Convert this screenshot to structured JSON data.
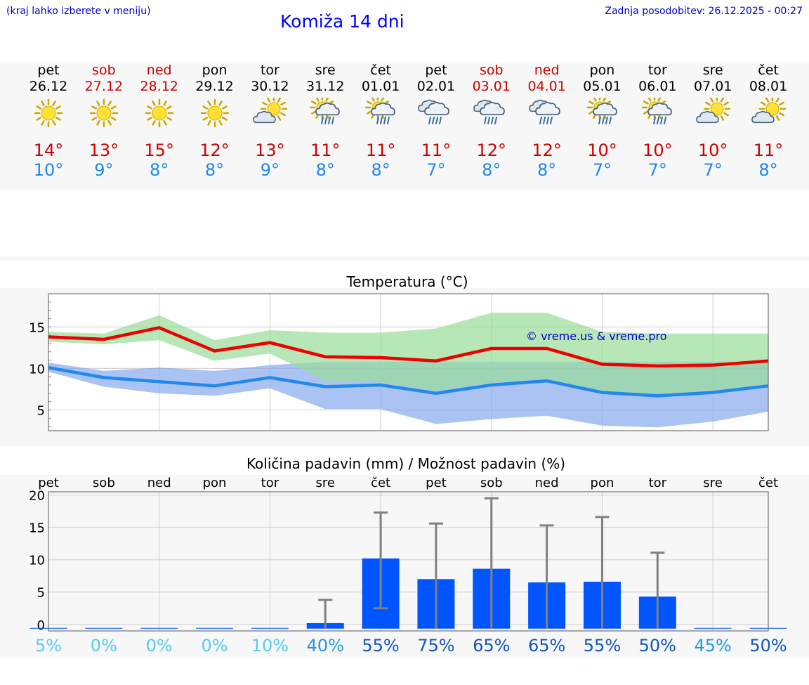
{
  "header": {
    "menu_hint": "(kraj lahko izberete v meniju)",
    "title": "Komiža 14 dni",
    "updated": "Zadnja posodobitev: 26.12.2025 - 00:27"
  },
  "colors": {
    "weekend": "#cc0000",
    "max_line": "#ee0000",
    "min_line": "#2288ee",
    "max_band": "#99dd99",
    "min_band": "#88aaee",
    "bar": "#0055ff",
    "error_bar": "#808080",
    "watermark": "#0000cc"
  },
  "days": [
    {
      "name": "pet",
      "date": "26.12",
      "weekend": false,
      "icon": "sunny-icon",
      "max": "14°",
      "min": "10°"
    },
    {
      "name": "sob",
      "date": "27.12",
      "weekend": true,
      "icon": "sunny-icon",
      "max": "13°",
      "min": "9°"
    },
    {
      "name": "ned",
      "date": "28.12",
      "weekend": true,
      "icon": "sunny-icon",
      "max": "15°",
      "min": "8°"
    },
    {
      "name": "pon",
      "date": "29.12",
      "weekend": false,
      "icon": "sunny-icon",
      "max": "12°",
      "min": "8°"
    },
    {
      "name": "tor",
      "date": "30.12",
      "weekend": false,
      "icon": "partly-cloudy-icon",
      "max": "13°",
      "min": "9°"
    },
    {
      "name": "sre",
      "date": "31.12",
      "weekend": false,
      "icon": "sun-cloud-rain-icon",
      "max": "11°",
      "min": "8°"
    },
    {
      "name": "čet",
      "date": "01.01",
      "weekend": false,
      "icon": "sun-cloud-rain-icon",
      "max": "11°",
      "min": "8°"
    },
    {
      "name": "pet",
      "date": "02.01",
      "weekend": false,
      "icon": "cloud-rain-icon",
      "max": "11°",
      "min": "7°"
    },
    {
      "name": "sob",
      "date": "03.01",
      "weekend": true,
      "icon": "cloud-rain-icon",
      "max": "12°",
      "min": "8°"
    },
    {
      "name": "ned",
      "date": "04.01",
      "weekend": true,
      "icon": "cloud-rain-icon",
      "max": "12°",
      "min": "8°"
    },
    {
      "name": "pon",
      "date": "05.01",
      "weekend": false,
      "icon": "sun-cloud-rain-icon",
      "max": "10°",
      "min": "7°"
    },
    {
      "name": "tor",
      "date": "06.01",
      "weekend": false,
      "icon": "sun-cloud-rain-icon",
      "max": "10°",
      "min": "7°"
    },
    {
      "name": "sre",
      "date": "07.01",
      "weekend": false,
      "icon": "partly-cloudy-icon",
      "max": "10°",
      "min": "7°"
    },
    {
      "name": "čet",
      "date": "08.01",
      "weekend": false,
      "icon": "partly-cloudy-icon",
      "max": "11°",
      "min": "8°"
    }
  ],
  "chart_data": [
    {
      "type": "line",
      "title": "Temperatura (°C)",
      "watermark": "© vreme.us & vreme.pro",
      "ylim": [
        2.5,
        19
      ],
      "yticks": [
        5,
        10,
        15
      ],
      "grid": true,
      "x": [
        0,
        1,
        2,
        3,
        4,
        5,
        6,
        7,
        8,
        9,
        10,
        11,
        12,
        13
      ],
      "series": [
        {
          "name": "max",
          "values": [
            13.8,
            13.5,
            14.9,
            12.1,
            13.1,
            11.4,
            11.3,
            10.9,
            12.4,
            12.4,
            10.5,
            10.3,
            10.4,
            10.9
          ]
        },
        {
          "name": "min",
          "values": [
            10.1,
            8.9,
            8.4,
            7.9,
            8.9,
            7.8,
            8.0,
            7.0,
            8.0,
            8.5,
            7.1,
            6.7,
            7.1,
            7.9
          ]
        }
      ],
      "bands": [
        {
          "name": "max_range",
          "upper": [
            14.4,
            14.2,
            16.4,
            13.4,
            14.6,
            14.3,
            14.3,
            14.8,
            16.7,
            16.7,
            14.4,
            14.2,
            14.2,
            14.2
          ],
          "lower": [
            13.2,
            12.9,
            13.4,
            10.9,
            11.8,
            8.5,
            8.3,
            7.3,
            8.3,
            8.7,
            6.9,
            6.6,
            7.0,
            7.8
          ]
        },
        {
          "name": "min_range",
          "upper": [
            10.7,
            9.7,
            10.1,
            9.7,
            10.4,
            10.8,
            10.8,
            10.8,
            10.8,
            10.8,
            10.8,
            10.8,
            10.8,
            10.8
          ],
          "lower": [
            9.6,
            7.8,
            7.0,
            6.7,
            7.6,
            5.1,
            5.1,
            3.3,
            3.9,
            4.3,
            3.1,
            2.9,
            3.6,
            4.8
          ]
        }
      ]
    },
    {
      "type": "bar",
      "title": "Količina padavin (mm) / Možnost padavin (%)",
      "categories": [
        "pet",
        "sob",
        "ned",
        "pon",
        "tor",
        "sre",
        "čet",
        "pet",
        "sob",
        "ned",
        "pon",
        "tor",
        "sre",
        "čet"
      ],
      "values": [
        0,
        0,
        0,
        0,
        0,
        0.2,
        10.2,
        7.0,
        8.6,
        6.5,
        6.6,
        4.3,
        0,
        0
      ],
      "error_low": [
        0,
        0,
        0,
        0,
        0,
        0,
        2.5,
        0,
        0,
        0,
        0,
        0,
        0,
        0
      ],
      "error_high": [
        0,
        0,
        0,
        0,
        0,
        3.8,
        17.3,
        15.6,
        19.5,
        15.3,
        16.6,
        11.1,
        0,
        0
      ],
      "ylim": [
        -1,
        20.5
      ],
      "yticks": [
        0,
        5,
        10,
        15,
        20
      ],
      "ylabel": "mm",
      "probability_labels": [
        "5%",
        "0%",
        "0%",
        "0%",
        "10%",
        "40%",
        "55%",
        "75%",
        "65%",
        "65%",
        "55%",
        "50%",
        "45%",
        "50%"
      ],
      "probability_values": [
        5,
        0,
        0,
        0,
        10,
        40,
        55,
        75,
        65,
        65,
        55,
        50,
        45,
        50
      ]
    }
  ]
}
